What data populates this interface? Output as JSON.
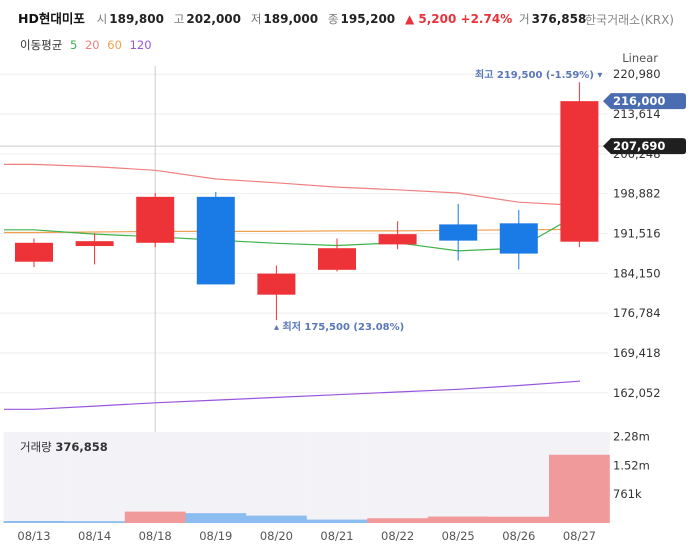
{
  "header": {
    "name": "HD현대미포",
    "open_label": "시",
    "open": "189,800",
    "high_label": "고",
    "high": "202,000",
    "low_label": "저",
    "low": "189,000",
    "close_label": "종",
    "close": "195,200",
    "change": "▲ 5,200 +2.74%",
    "volume_label": "거",
    "volume": "376,858",
    "exchange": "한국거래소(KRX)"
  },
  "ma_legend": {
    "title": "이동평균",
    "items": [
      {
        "label": "5",
        "color": "#3cb44b"
      },
      {
        "label": "20",
        "color": "#f08080"
      },
      {
        "label": "60",
        "color": "#f0a050"
      },
      {
        "label": "120",
        "color": "#9955dd"
      }
    ]
  },
  "scale_mode": "Linear",
  "colors": {
    "up": "#ee3338",
    "down": "#1a7ae6",
    "volume_up": "#f19a9c",
    "volume_down": "#8bbdf0"
  },
  "chart_data": {
    "type": "candlestick",
    "dates": [
      "08/13",
      "08/14",
      "08/18",
      "08/19",
      "08/20",
      "08/21",
      "08/22",
      "08/25",
      "08/26",
      "08/27"
    ],
    "ohlc": [
      [
        186300,
        190600,
        185300,
        189800
      ],
      [
        189200,
        191600,
        185800,
        190100
      ],
      [
        189800,
        199000,
        189000,
        198300
      ],
      [
        198300,
        199200,
        182100,
        182100
      ],
      [
        180200,
        185600,
        175500,
        184100
      ],
      [
        184800,
        190600,
        184500,
        188800
      ],
      [
        189500,
        193800,
        188600,
        191400
      ],
      [
        193200,
        197000,
        186500,
        190200
      ],
      [
        193400,
        195900,
        184900,
        187800
      ],
      [
        190000,
        219500,
        189000,
        216000
      ]
    ],
    "ma5": [
      192200,
      191400,
      190900,
      190300,
      189700,
      189300,
      189800,
      188300,
      188800,
      195200
    ],
    "ma20": [
      204300,
      203900,
      203200,
      201600,
      200900,
      200100,
      199600,
      199000,
      197300,
      196700
    ],
    "ma60": [
      191700,
      191800,
      191900,
      191900,
      191900,
      192000,
      192000,
      192100,
      192200,
      192300
    ],
    "ma120": [
      159000,
      159600,
      160200,
      160700,
      161200,
      161700,
      162200,
      162700,
      163400,
      164200
    ],
    "volumes": [
      52000,
      48000,
      300000,
      260000,
      195000,
      90000,
      126000,
      170000,
      165000,
      1800000
    ],
    "volume_dir": [
      "down",
      "down",
      "up",
      "down",
      "down",
      "down",
      "up",
      "up",
      "up",
      "up"
    ],
    "y_ticks": [
      "220,980",
      "213,614",
      "206,248",
      "198,882",
      "191,516",
      "184,150",
      "176,784",
      "169,418",
      "162,052"
    ],
    "y_tick_values": [
      220980,
      213614,
      206248,
      198882,
      191516,
      184150,
      176784,
      169418,
      162052
    ],
    "ylim": [
      158500,
      222500
    ],
    "volume_ticks": [
      "2.28m",
      "1.52m",
      "761k"
    ],
    "volume_tick_values": [
      2280000,
      1520000,
      761000
    ],
    "volume_max": 2400000,
    "volume_title": "거래량",
    "volume_value": "376,858",
    "current_price_label": "216,000",
    "current_price": 216000,
    "crosshair_price_label": "207,690",
    "crosshair_price": 207690,
    "high_annotation": "최고 219,500 (-1.59%)",
    "low_annotation": "최저 175,500 (23.08%)"
  }
}
